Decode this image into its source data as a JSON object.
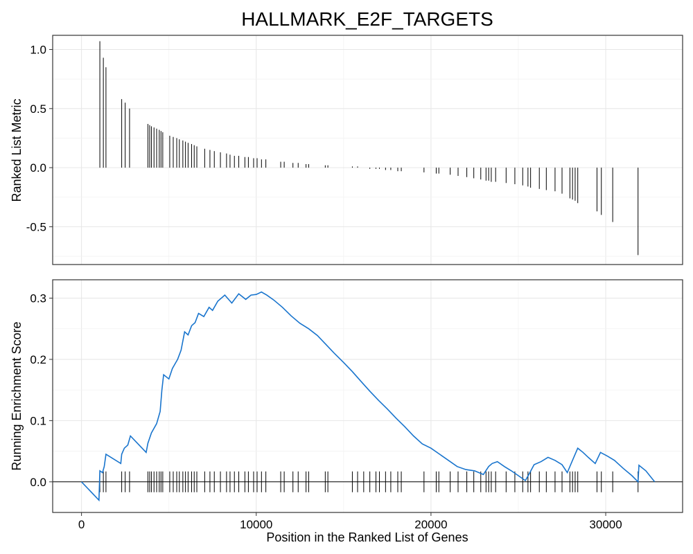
{
  "chart_data": {
    "type": "line",
    "title": "HALLMARK_E2F_TARGETS",
    "xlabel": "Position in the Ranked List of Genes",
    "x_ticks": [
      0,
      10000,
      20000,
      30000
    ],
    "x_tick_labels": [
      "0",
      "10000",
      "20000",
      "30000"
    ],
    "xlim": [
      -1650,
      34400
    ],
    "grid": true,
    "top_panel": {
      "ylabel": "Ranked List Metric",
      "ylim": [
        -0.82,
        1.12
      ],
      "y_ticks": [
        -0.5,
        0.0,
        0.5,
        1.0
      ],
      "y_tick_labels": [
        "-0.5",
        "0.0",
        "0.5",
        "1.0"
      ],
      "bars": [
        [
          1050,
          1.07
        ],
        [
          1250,
          0.93
        ],
        [
          1400,
          0.85
        ],
        [
          2300,
          0.58
        ],
        [
          2500,
          0.55
        ],
        [
          2750,
          0.5
        ],
        [
          3800,
          0.37
        ],
        [
          3900,
          0.36
        ],
        [
          4000,
          0.35
        ],
        [
          4150,
          0.34
        ],
        [
          4300,
          0.33
        ],
        [
          4450,
          0.32
        ],
        [
          4550,
          0.31
        ],
        [
          4650,
          0.3
        ],
        [
          5050,
          0.27
        ],
        [
          5250,
          0.26
        ],
        [
          5450,
          0.25
        ],
        [
          5600,
          0.24
        ],
        [
          5800,
          0.23
        ],
        [
          5950,
          0.22
        ],
        [
          6100,
          0.21
        ],
        [
          6300,
          0.2
        ],
        [
          6450,
          0.19
        ],
        [
          6600,
          0.18
        ],
        [
          7050,
          0.16
        ],
        [
          7350,
          0.15
        ],
        [
          7600,
          0.14
        ],
        [
          7950,
          0.13
        ],
        [
          8300,
          0.12
        ],
        [
          8500,
          0.11
        ],
        [
          8750,
          0.1
        ],
        [
          9000,
          0.1
        ],
        [
          9350,
          0.09
        ],
        [
          9550,
          0.09
        ],
        [
          9850,
          0.08
        ],
        [
          10050,
          0.08
        ],
        [
          10300,
          0.07
        ],
        [
          10550,
          0.07
        ],
        [
          11400,
          0.05
        ],
        [
          11600,
          0.05
        ],
        [
          12100,
          0.04
        ],
        [
          12400,
          0.04
        ],
        [
          12850,
          0.03
        ],
        [
          13000,
          0.03
        ],
        [
          13950,
          0.02
        ],
        [
          14100,
          0.02
        ],
        [
          15500,
          0.01
        ],
        [
          15800,
          0.01
        ],
        [
          16150,
          0.0
        ],
        [
          16500,
          -0.01
        ],
        [
          16850,
          -0.01
        ],
        [
          17050,
          -0.01
        ],
        [
          17400,
          -0.02
        ],
        [
          17700,
          -0.02
        ],
        [
          18100,
          -0.03
        ],
        [
          18300,
          -0.03
        ],
        [
          19600,
          -0.04
        ],
        [
          20300,
          -0.05
        ],
        [
          20450,
          -0.05
        ],
        [
          21100,
          -0.06
        ],
        [
          21550,
          -0.07
        ],
        [
          22050,
          -0.08
        ],
        [
          22450,
          -0.09
        ],
        [
          22850,
          -0.1
        ],
        [
          23150,
          -0.11
        ],
        [
          23300,
          -0.11
        ],
        [
          23450,
          -0.12
        ],
        [
          23700,
          -0.12
        ],
        [
          24300,
          -0.13
        ],
        [
          24800,
          -0.14
        ],
        [
          25250,
          -0.15
        ],
        [
          25550,
          -0.16
        ],
        [
          25700,
          -0.17
        ],
        [
          26200,
          -0.18
        ],
        [
          26600,
          -0.19
        ],
        [
          27100,
          -0.2
        ],
        [
          27500,
          -0.22
        ],
        [
          27950,
          -0.26
        ],
        [
          28100,
          -0.27
        ],
        [
          28250,
          -0.28
        ],
        [
          28400,
          -0.3
        ],
        [
          29500,
          -0.37
        ],
        [
          29750,
          -0.4
        ],
        [
          30400,
          -0.46
        ],
        [
          31850,
          -0.74
        ]
      ]
    },
    "bottom_panel": {
      "ylabel": "Running Enrichment Score",
      "ylim": [
        -0.05,
        0.33
      ],
      "y_ticks": [
        0.0,
        0.1,
        0.2,
        0.3
      ],
      "y_tick_labels": [
        "0.0",
        "0.1",
        "0.2",
        "0.3"
      ],
      "series": [
        {
          "color": "#1874CD",
          "points": [
            [
              0,
              0.0
            ],
            [
              1000,
              -0.03
            ],
            [
              1050,
              0.018
            ],
            [
              1200,
              0.015
            ],
            [
              1300,
              0.025
            ],
            [
              1400,
              0.045
            ],
            [
              2250,
              0.03
            ],
            [
              2300,
              0.045
            ],
            [
              2450,
              0.055
            ],
            [
              2650,
              0.06
            ],
            [
              2800,
              0.075
            ],
            [
              3700,
              0.048
            ],
            [
              3800,
              0.063
            ],
            [
              4000,
              0.08
            ],
            [
              4300,
              0.095
            ],
            [
              4500,
              0.115
            ],
            [
              4600,
              0.15
            ],
            [
              4700,
              0.175
            ],
            [
              5000,
              0.168
            ],
            [
              5200,
              0.185
            ],
            [
              5500,
              0.2
            ],
            [
              5700,
              0.215
            ],
            [
              5900,
              0.245
            ],
            [
              6100,
              0.24
            ],
            [
              6300,
              0.255
            ],
            [
              6500,
              0.26
            ],
            [
              6700,
              0.275
            ],
            [
              7000,
              0.27
            ],
            [
              7300,
              0.285
            ],
            [
              7500,
              0.28
            ],
            [
              7800,
              0.295
            ],
            [
              8200,
              0.305
            ],
            [
              8600,
              0.292
            ],
            [
              9000,
              0.307
            ],
            [
              9400,
              0.298
            ],
            [
              9700,
              0.305
            ],
            [
              10000,
              0.306
            ],
            [
              10300,
              0.31
            ],
            [
              10600,
              0.305
            ],
            [
              11000,
              0.297
            ],
            [
              11500,
              0.285
            ],
            [
              12000,
              0.271
            ],
            [
              12500,
              0.259
            ],
            [
              13000,
              0.25
            ],
            [
              13500,
              0.239
            ],
            [
              14000,
              0.224
            ],
            [
              14500,
              0.209
            ],
            [
              15000,
              0.195
            ],
            [
              15500,
              0.18
            ],
            [
              16000,
              0.164
            ],
            [
              16500,
              0.148
            ],
            [
              17000,
              0.133
            ],
            [
              17500,
              0.119
            ],
            [
              18000,
              0.104
            ],
            [
              18500,
              0.09
            ],
            [
              19000,
              0.075
            ],
            [
              19500,
              0.062
            ],
            [
              20000,
              0.055
            ],
            [
              20500,
              0.045
            ],
            [
              21000,
              0.035
            ],
            [
              21500,
              0.025
            ],
            [
              22000,
              0.02
            ],
            [
              22500,
              0.018
            ],
            [
              23000,
              0.012
            ],
            [
              23300,
              0.025
            ],
            [
              23500,
              0.03
            ],
            [
              23800,
              0.033
            ],
            [
              24200,
              0.025
            ],
            [
              24600,
              0.018
            ],
            [
              25000,
              0.01
            ],
            [
              25400,
              0.002
            ],
            [
              25600,
              0.012
            ],
            [
              25900,
              0.028
            ],
            [
              26300,
              0.033
            ],
            [
              26700,
              0.04
            ],
            [
              27100,
              0.035
            ],
            [
              27500,
              0.028
            ],
            [
              27800,
              0.015
            ],
            [
              28100,
              0.035
            ],
            [
              28400,
              0.055
            ],
            [
              28700,
              0.048
            ],
            [
              29000,
              0.04
            ],
            [
              29400,
              0.03
            ],
            [
              29700,
              0.048
            ],
            [
              30100,
              0.042
            ],
            [
              30500,
              0.035
            ],
            [
              31000,
              0.022
            ],
            [
              31500,
              0.01
            ],
            [
              31850,
              0.0
            ],
            [
              31900,
              0.027
            ],
            [
              32300,
              0.018
            ],
            [
              32800,
              0.0
            ]
          ]
        }
      ],
      "hit_positions": [
        1050,
        1250,
        1400,
        2300,
        2500,
        2750,
        3800,
        3900,
        4000,
        4150,
        4300,
        4450,
        4550,
        4650,
        5050,
        5250,
        5450,
        5600,
        5800,
        5950,
        6100,
        6300,
        6450,
        6600,
        7050,
        7350,
        7600,
        7950,
        8300,
        8500,
        8750,
        9000,
        9350,
        9550,
        9850,
        10050,
        10300,
        10550,
        11400,
        11600,
        12100,
        12400,
        12850,
        13000,
        13950,
        14100,
        15500,
        15800,
        16150,
        16500,
        16850,
        17050,
        17400,
        17700,
        18100,
        18300,
        19600,
        20300,
        20450,
        21100,
        21550,
        22050,
        22450,
        22850,
        23150,
        23300,
        23450,
        23700,
        24300,
        24800,
        25250,
        25550,
        25700,
        26200,
        26600,
        27100,
        27500,
        27950,
        28100,
        28250,
        28400,
        29500,
        29750,
        30400,
        31850
      ]
    }
  }
}
